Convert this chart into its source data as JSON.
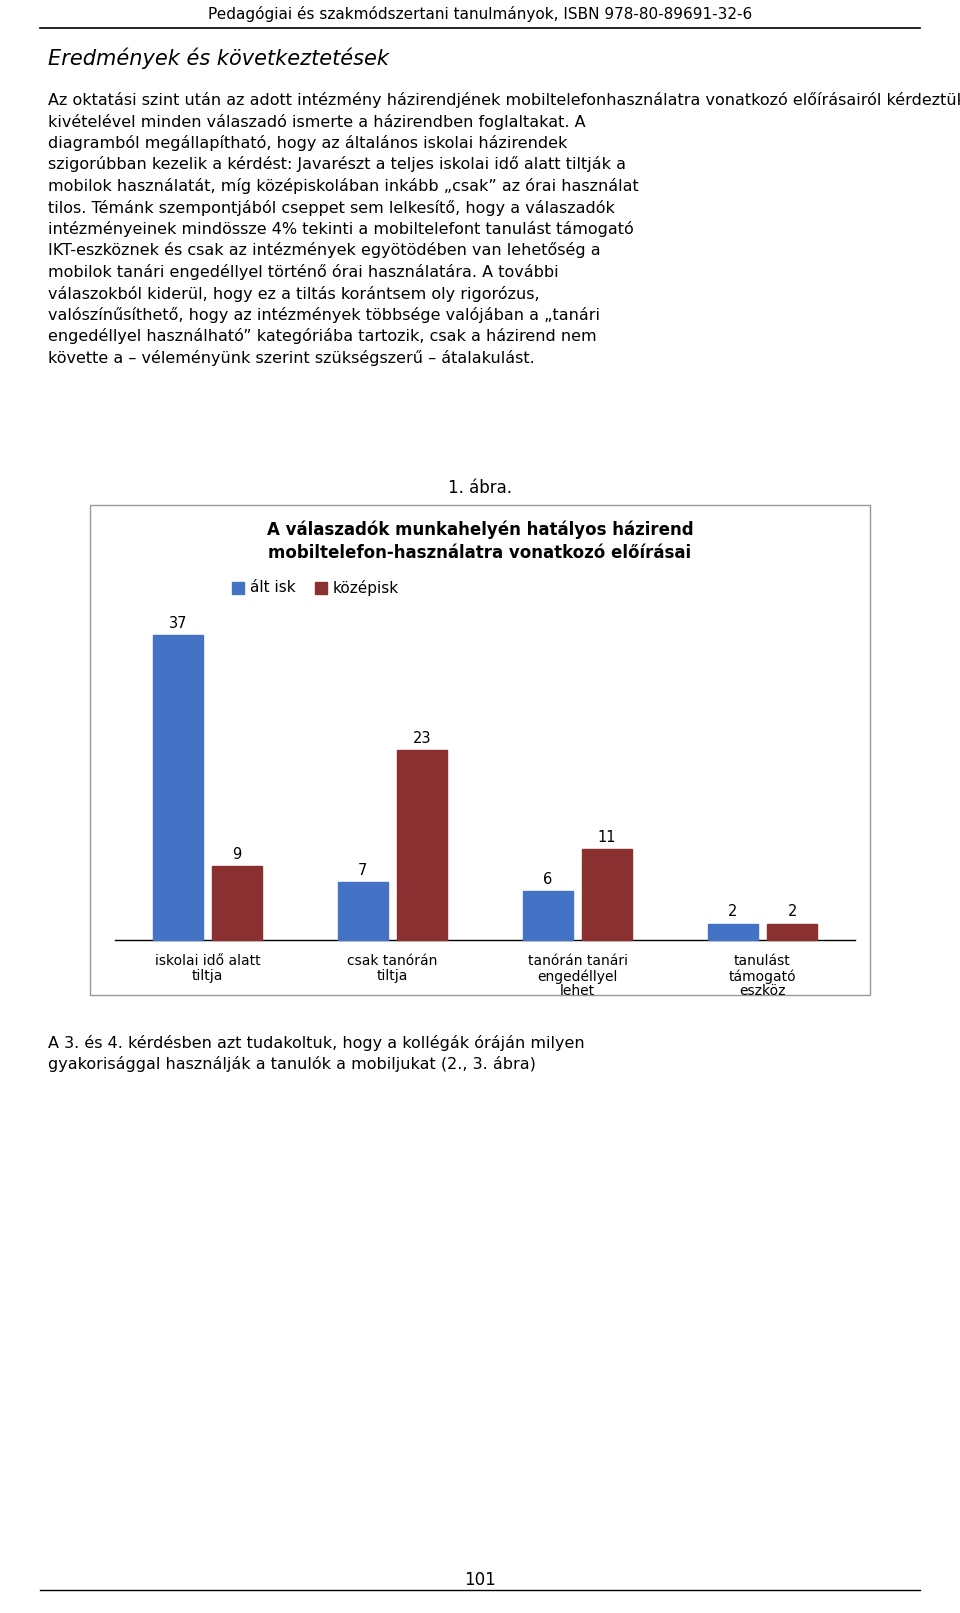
{
  "page_header": "Pedagógiai és szakmódszertani tanulmányok, ISBN 978-80-89691-32-6",
  "section_title": "Eredmények és következtetések",
  "figure_label": "1. ábra.",
  "chart_title_line1": "A válaszadók munkahelyén hatályos házirend",
  "chart_title_line2": "mobiltelefon-használatra vonatkozó előírásai",
  "legend_labels": [
    "ált isk",
    "középisk"
  ],
  "categories": [
    "iskolai idő alatt\ntiltja",
    "csak tanórán\ntiltja",
    "tanórán tanári\nengedéllyel\nlehet",
    "tanulást\ntámogató\neszköz"
  ],
  "alt_isk_values": [
    37,
    7,
    6,
    2
  ],
  "kozepisk_values": [
    9,
    23,
    11,
    2
  ],
  "bar_color_blue": "#4472C4",
  "bar_color_red": "#8B3030",
  "page_number": "101",
  "background_color": "#FFFFFF",
  "chart_border_color": "#999999"
}
